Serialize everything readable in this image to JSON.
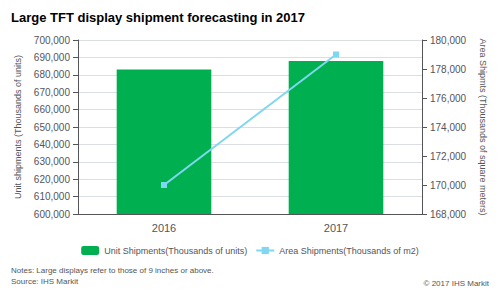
{
  "chart_data": {
    "type": "bar",
    "title": "Large TFT display shipment forecasting in 2017",
    "categories": [
      "2016",
      "2017"
    ],
    "series": [
      {
        "name": "Unit Shipments(Thousands of units)",
        "type": "bar",
        "color": "#00b050",
        "values": [
          683000,
          688000
        ]
      },
      {
        "name": "Area Shipments(Thousands of m2)",
        "type": "line",
        "color": "#7fd7f0",
        "marker": "square",
        "axis": "y2",
        "values": [
          170000,
          179000
        ]
      }
    ],
    "ylabel": "Unit shipments (Thousands of units)",
    "y2label": "Area Shipmts (Thousands of square meters)",
    "ylim": [
      600000,
      700000
    ],
    "yticks": [
      {
        "value": 600000,
        "label": "600,000"
      },
      {
        "value": 610000,
        "label": "610,000"
      },
      {
        "value": 620000,
        "label": "620,000"
      },
      {
        "value": 630000,
        "label": "630,000"
      },
      {
        "value": 640000,
        "label": "640,000"
      },
      {
        "value": 650000,
        "label": "650,000"
      },
      {
        "value": 660000,
        "label": "660,000"
      },
      {
        "value": 670000,
        "label": "670,000"
      },
      {
        "value": 680000,
        "label": "680,000"
      },
      {
        "value": 690000,
        "label": "690,000"
      },
      {
        "value": 700000,
        "label": "700,000"
      }
    ],
    "y2lim": [
      168000,
      180000
    ],
    "y2ticks": [
      {
        "value": 168000,
        "label": "168,000"
      },
      {
        "value": 170000,
        "label": "170,000"
      },
      {
        "value": 172000,
        "label": "172,000"
      },
      {
        "value": 174000,
        "label": "174,000"
      },
      {
        "value": 176000,
        "label": "176,000"
      },
      {
        "value": 178000,
        "label": "178,000"
      },
      {
        "value": 180000,
        "label": "180,000"
      }
    ],
    "annotations": [
      "Notes: Large displays refer to those of 9 inches or above.\nSource: IHS Markit",
      "© 2017 IHS Markit"
    ],
    "grid": true,
    "legend": "bottom"
  }
}
